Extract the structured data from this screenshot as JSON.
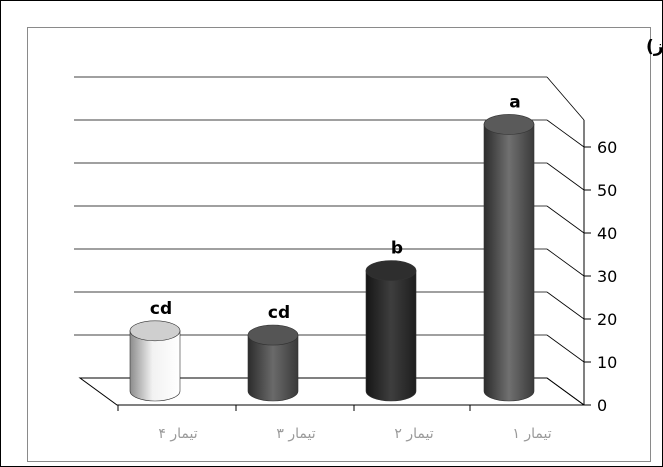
{
  "chart_data": {
    "type": "bar",
    "title": "مدت درما ن (روز)",
    "categories": [
      "تیمار ۴",
      "تیمار ۳",
      "تیمار ۲",
      "تیمار ۱"
    ],
    "values": [
      14,
      13,
      28,
      62
    ],
    "data_labels": [
      "cd",
      "cd",
      "b",
      "a"
    ],
    "y_ticks": [
      "0",
      "10",
      "20",
      "30",
      "40",
      "50",
      "60"
    ],
    "ylim": [
      0,
      60
    ],
    "grid": true,
    "legend": "none",
    "colors": [
      "#cfcfcf",
      "#555555",
      "#2e2e2e",
      "#5a5a5a"
    ]
  }
}
